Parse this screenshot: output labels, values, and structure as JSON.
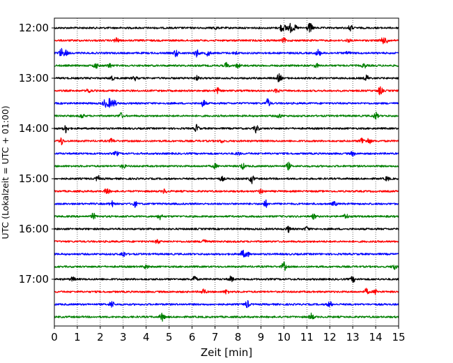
{
  "chart_data": {
    "type": "line",
    "title": "",
    "xlabel": "Zeit  [min]",
    "ylabel": "UTC (Lokalzeit = UTC + 01:00)",
    "xlim": [
      0,
      15
    ],
    "x_ticks": [
      "0",
      "1",
      "2",
      "3",
      "4",
      "5",
      "6",
      "7",
      "8",
      "9",
      "10",
      "11",
      "12",
      "13",
      "14",
      "15"
    ],
    "y_ticks": [
      "12:00",
      "13:00",
      "14:00",
      "15:00",
      "16:00",
      "17:00"
    ],
    "grid": "vertical dotted at each minute",
    "colors_cycle": [
      "#000000",
      "#ff0000",
      "#0000ff",
      "#008000"
    ],
    "traces": [
      {
        "start": "12:00",
        "color": "#000000",
        "events": [
          {
            "t": 7.0,
            "a": 2
          },
          {
            "t": 9.9,
            "a": 5
          },
          {
            "t": 10.1,
            "a": 4
          },
          {
            "t": 10.3,
            "a": 6
          },
          {
            "t": 10.5,
            "a": 3
          },
          {
            "t": 11.1,
            "a": 5
          },
          {
            "t": 11.2,
            "a": 3
          },
          {
            "t": 12.9,
            "a": 4
          }
        ]
      },
      {
        "start": "12:15",
        "color": "#ff0000",
        "events": [
          {
            "t": 2.7,
            "a": 4
          },
          {
            "t": 10.0,
            "a": 3
          },
          {
            "t": 12.8,
            "a": 2
          },
          {
            "t": 14.3,
            "a": 5
          },
          {
            "t": 14.5,
            "a": 3
          }
        ]
      },
      {
        "start": "12:30",
        "color": "#0000ff",
        "events": [
          {
            "t": 0.3,
            "a": 6
          },
          {
            "t": 0.5,
            "a": 4
          },
          {
            "t": 5.3,
            "a": 5
          },
          {
            "t": 6.2,
            "a": 5
          },
          {
            "t": 6.7,
            "a": 4
          },
          {
            "t": 7.9,
            "a": 2
          },
          {
            "t": 11.5,
            "a": 5
          },
          {
            "t": 12.8,
            "a": 2
          }
        ]
      },
      {
        "start": "12:45",
        "color": "#008000",
        "events": [
          {
            "t": 1.8,
            "a": 4
          },
          {
            "t": 2.4,
            "a": 3
          },
          {
            "t": 7.5,
            "a": 4
          },
          {
            "t": 8.0,
            "a": 3
          },
          {
            "t": 11.4,
            "a": 3
          },
          {
            "t": 13.5,
            "a": 3
          }
        ]
      },
      {
        "start": "13:00",
        "color": "#000000",
        "events": [
          {
            "t": 2.5,
            "a": 3
          },
          {
            "t": 3.5,
            "a": 3
          },
          {
            "t": 6.2,
            "a": 3
          },
          {
            "t": 9.8,
            "a": 6
          },
          {
            "t": 13.6,
            "a": 4
          }
        ]
      },
      {
        "start": "13:15",
        "color": "#ff0000",
        "events": [
          {
            "t": 1.5,
            "a": 3
          },
          {
            "t": 7.1,
            "a": 4
          },
          {
            "t": 9.7,
            "a": 3
          },
          {
            "t": 14.2,
            "a": 6
          }
        ]
      },
      {
        "start": "13:30",
        "color": "#0000ff",
        "events": [
          {
            "t": 2.2,
            "a": 5
          },
          {
            "t": 2.4,
            "a": 6
          },
          {
            "t": 2.6,
            "a": 5
          },
          {
            "t": 6.5,
            "a": 5
          },
          {
            "t": 9.3,
            "a": 6
          }
        ]
      },
      {
        "start": "13:45",
        "color": "#008000",
        "events": [
          {
            "t": 1.2,
            "a": 3
          },
          {
            "t": 2.9,
            "a": 4
          },
          {
            "t": 9.8,
            "a": 3
          },
          {
            "t": 14.0,
            "a": 5
          }
        ]
      },
      {
        "start": "14:00",
        "color": "#000000",
        "events": [
          {
            "t": 0.5,
            "a": 6
          },
          {
            "t": 6.2,
            "a": 5
          },
          {
            "t": 8.8,
            "a": 6
          }
        ]
      },
      {
        "start": "14:15",
        "color": "#ff0000",
        "events": [
          {
            "t": 0.3,
            "a": 5
          },
          {
            "t": 2.5,
            "a": 3
          },
          {
            "t": 7.3,
            "a": 2
          },
          {
            "t": 13.4,
            "a": 5
          },
          {
            "t": 13.7,
            "a": 4
          }
        ]
      },
      {
        "start": "14:30",
        "color": "#0000ff",
        "events": [
          {
            "t": 2.7,
            "a": 3
          },
          {
            "t": 8.0,
            "a": 2
          },
          {
            "t": 13.0,
            "a": 3
          }
        ]
      },
      {
        "start": "14:45",
        "color": "#008000",
        "events": [
          {
            "t": 3.0,
            "a": 3
          },
          {
            "t": 7.0,
            "a": 3
          },
          {
            "t": 8.2,
            "a": 4
          },
          {
            "t": 10.2,
            "a": 5
          }
        ]
      },
      {
        "start": "15:00",
        "color": "#000000",
        "events": [
          {
            "t": 1.9,
            "a": 4
          },
          {
            "t": 7.3,
            "a": 3
          },
          {
            "t": 8.6,
            "a": 6
          },
          {
            "t": 14.5,
            "a": 3
          }
        ]
      },
      {
        "start": "15:15",
        "color": "#ff0000",
        "events": [
          {
            "t": 2.3,
            "a": 5
          },
          {
            "t": 4.8,
            "a": 3
          },
          {
            "t": 9.0,
            "a": 3
          }
        ]
      },
      {
        "start": "15:30",
        "color": "#0000ff",
        "events": [
          {
            "t": 2.5,
            "a": 4
          },
          {
            "t": 3.5,
            "a": 4
          },
          {
            "t": 9.2,
            "a": 5
          },
          {
            "t": 12.2,
            "a": 3
          }
        ]
      },
      {
        "start": "15:45",
        "color": "#008000",
        "events": [
          {
            "t": 1.7,
            "a": 4
          },
          {
            "t": 4.6,
            "a": 4
          },
          {
            "t": 11.3,
            "a": 3
          },
          {
            "t": 12.7,
            "a": 4
          }
        ]
      },
      {
        "start": "16:00",
        "color": "#000000",
        "events": [
          {
            "t": 10.2,
            "a": 4
          },
          {
            "t": 11.0,
            "a": 3
          }
        ]
      },
      {
        "start": "16:15",
        "color": "#ff0000",
        "events": [
          {
            "t": 4.5,
            "a": 3
          },
          {
            "t": 6.5,
            "a": 4
          }
        ]
      },
      {
        "start": "16:30",
        "color": "#0000ff",
        "events": [
          {
            "t": 3.0,
            "a": 4
          },
          {
            "t": 8.2,
            "a": 5
          },
          {
            "t": 8.4,
            "a": 4
          }
        ]
      },
      {
        "start": "16:45",
        "color": "#008000",
        "events": [
          {
            "t": 4.0,
            "a": 3
          },
          {
            "t": 10.0,
            "a": 6
          },
          {
            "t": 14.8,
            "a": 4
          }
        ]
      },
      {
        "start": "17:00",
        "color": "#000000",
        "events": [
          {
            "t": 0.8,
            "a": 3
          },
          {
            "t": 6.1,
            "a": 5
          },
          {
            "t": 7.7,
            "a": 4
          },
          {
            "t": 13.0,
            "a": 4
          }
        ]
      },
      {
        "start": "17:15",
        "color": "#ff0000",
        "events": [
          {
            "t": 6.5,
            "a": 4
          },
          {
            "t": 7.5,
            "a": 3
          },
          {
            "t": 13.6,
            "a": 4
          },
          {
            "t": 14.0,
            "a": 3
          }
        ]
      },
      {
        "start": "17:30",
        "color": "#0000ff",
        "events": [
          {
            "t": 2.5,
            "a": 5
          },
          {
            "t": 8.4,
            "a": 5
          },
          {
            "t": 12.0,
            "a": 4
          }
        ]
      },
      {
        "start": "17:45",
        "color": "#008000",
        "events": [
          {
            "t": 4.7,
            "a": 6
          },
          {
            "t": 11.2,
            "a": 5
          }
        ]
      }
    ]
  }
}
